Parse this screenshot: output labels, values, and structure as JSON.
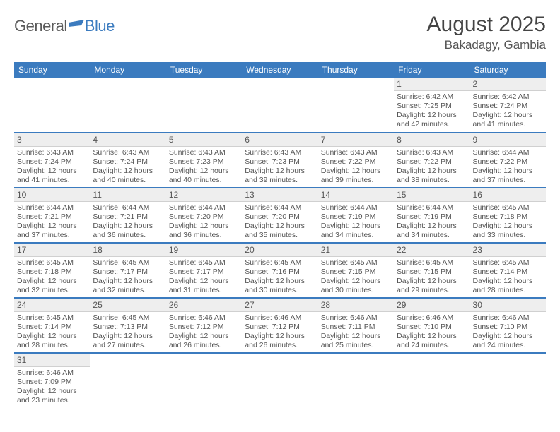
{
  "brand": {
    "part1": "General",
    "part2": "Blue"
  },
  "header": {
    "title": "August 2025",
    "location": "Bakadagy, Gambia"
  },
  "colors": {
    "header_bg": "#3b7bbf",
    "header_fg": "#ffffff",
    "daynum_bg": "#eeeeee",
    "row_divider": "#3b7bbf",
    "text": "#555555",
    "logo_gray": "#5a5a5a",
    "logo_blue": "#3b7bbf"
  },
  "daysOfWeek": [
    "Sunday",
    "Monday",
    "Tuesday",
    "Wednesday",
    "Thursday",
    "Friday",
    "Saturday"
  ],
  "weeks": [
    [
      null,
      null,
      null,
      null,
      null,
      {
        "n": "1",
        "sr": "Sunrise: 6:42 AM",
        "ss": "Sunset: 7:25 PM",
        "dl1": "Daylight: 12 hours",
        "dl2": "and 42 minutes."
      },
      {
        "n": "2",
        "sr": "Sunrise: 6:42 AM",
        "ss": "Sunset: 7:24 PM",
        "dl1": "Daylight: 12 hours",
        "dl2": "and 41 minutes."
      }
    ],
    [
      {
        "n": "3",
        "sr": "Sunrise: 6:43 AM",
        "ss": "Sunset: 7:24 PM",
        "dl1": "Daylight: 12 hours",
        "dl2": "and 41 minutes."
      },
      {
        "n": "4",
        "sr": "Sunrise: 6:43 AM",
        "ss": "Sunset: 7:24 PM",
        "dl1": "Daylight: 12 hours",
        "dl2": "and 40 minutes."
      },
      {
        "n": "5",
        "sr": "Sunrise: 6:43 AM",
        "ss": "Sunset: 7:23 PM",
        "dl1": "Daylight: 12 hours",
        "dl2": "and 40 minutes."
      },
      {
        "n": "6",
        "sr": "Sunrise: 6:43 AM",
        "ss": "Sunset: 7:23 PM",
        "dl1": "Daylight: 12 hours",
        "dl2": "and 39 minutes."
      },
      {
        "n": "7",
        "sr": "Sunrise: 6:43 AM",
        "ss": "Sunset: 7:22 PM",
        "dl1": "Daylight: 12 hours",
        "dl2": "and 39 minutes."
      },
      {
        "n": "8",
        "sr": "Sunrise: 6:43 AM",
        "ss": "Sunset: 7:22 PM",
        "dl1": "Daylight: 12 hours",
        "dl2": "and 38 minutes."
      },
      {
        "n": "9",
        "sr": "Sunrise: 6:44 AM",
        "ss": "Sunset: 7:22 PM",
        "dl1": "Daylight: 12 hours",
        "dl2": "and 37 minutes."
      }
    ],
    [
      {
        "n": "10",
        "sr": "Sunrise: 6:44 AM",
        "ss": "Sunset: 7:21 PM",
        "dl1": "Daylight: 12 hours",
        "dl2": "and 37 minutes."
      },
      {
        "n": "11",
        "sr": "Sunrise: 6:44 AM",
        "ss": "Sunset: 7:21 PM",
        "dl1": "Daylight: 12 hours",
        "dl2": "and 36 minutes."
      },
      {
        "n": "12",
        "sr": "Sunrise: 6:44 AM",
        "ss": "Sunset: 7:20 PM",
        "dl1": "Daylight: 12 hours",
        "dl2": "and 36 minutes."
      },
      {
        "n": "13",
        "sr": "Sunrise: 6:44 AM",
        "ss": "Sunset: 7:20 PM",
        "dl1": "Daylight: 12 hours",
        "dl2": "and 35 minutes."
      },
      {
        "n": "14",
        "sr": "Sunrise: 6:44 AM",
        "ss": "Sunset: 7:19 PM",
        "dl1": "Daylight: 12 hours",
        "dl2": "and 34 minutes."
      },
      {
        "n": "15",
        "sr": "Sunrise: 6:44 AM",
        "ss": "Sunset: 7:19 PM",
        "dl1": "Daylight: 12 hours",
        "dl2": "and 34 minutes."
      },
      {
        "n": "16",
        "sr": "Sunrise: 6:45 AM",
        "ss": "Sunset: 7:18 PM",
        "dl1": "Daylight: 12 hours",
        "dl2": "and 33 minutes."
      }
    ],
    [
      {
        "n": "17",
        "sr": "Sunrise: 6:45 AM",
        "ss": "Sunset: 7:18 PM",
        "dl1": "Daylight: 12 hours",
        "dl2": "and 32 minutes."
      },
      {
        "n": "18",
        "sr": "Sunrise: 6:45 AM",
        "ss": "Sunset: 7:17 PM",
        "dl1": "Daylight: 12 hours",
        "dl2": "and 32 minutes."
      },
      {
        "n": "19",
        "sr": "Sunrise: 6:45 AM",
        "ss": "Sunset: 7:17 PM",
        "dl1": "Daylight: 12 hours",
        "dl2": "and 31 minutes."
      },
      {
        "n": "20",
        "sr": "Sunrise: 6:45 AM",
        "ss": "Sunset: 7:16 PM",
        "dl1": "Daylight: 12 hours",
        "dl2": "and 30 minutes."
      },
      {
        "n": "21",
        "sr": "Sunrise: 6:45 AM",
        "ss": "Sunset: 7:15 PM",
        "dl1": "Daylight: 12 hours",
        "dl2": "and 30 minutes."
      },
      {
        "n": "22",
        "sr": "Sunrise: 6:45 AM",
        "ss": "Sunset: 7:15 PM",
        "dl1": "Daylight: 12 hours",
        "dl2": "and 29 minutes."
      },
      {
        "n": "23",
        "sr": "Sunrise: 6:45 AM",
        "ss": "Sunset: 7:14 PM",
        "dl1": "Daylight: 12 hours",
        "dl2": "and 28 minutes."
      }
    ],
    [
      {
        "n": "24",
        "sr": "Sunrise: 6:45 AM",
        "ss": "Sunset: 7:14 PM",
        "dl1": "Daylight: 12 hours",
        "dl2": "and 28 minutes."
      },
      {
        "n": "25",
        "sr": "Sunrise: 6:45 AM",
        "ss": "Sunset: 7:13 PM",
        "dl1": "Daylight: 12 hours",
        "dl2": "and 27 minutes."
      },
      {
        "n": "26",
        "sr": "Sunrise: 6:46 AM",
        "ss": "Sunset: 7:12 PM",
        "dl1": "Daylight: 12 hours",
        "dl2": "and 26 minutes."
      },
      {
        "n": "27",
        "sr": "Sunrise: 6:46 AM",
        "ss": "Sunset: 7:12 PM",
        "dl1": "Daylight: 12 hours",
        "dl2": "and 26 minutes."
      },
      {
        "n": "28",
        "sr": "Sunrise: 6:46 AM",
        "ss": "Sunset: 7:11 PM",
        "dl1": "Daylight: 12 hours",
        "dl2": "and 25 minutes."
      },
      {
        "n": "29",
        "sr": "Sunrise: 6:46 AM",
        "ss": "Sunset: 7:10 PM",
        "dl1": "Daylight: 12 hours",
        "dl2": "and 24 minutes."
      },
      {
        "n": "30",
        "sr": "Sunrise: 6:46 AM",
        "ss": "Sunset: 7:10 PM",
        "dl1": "Daylight: 12 hours",
        "dl2": "and 24 minutes."
      }
    ],
    [
      {
        "n": "31",
        "sr": "Sunrise: 6:46 AM",
        "ss": "Sunset: 7:09 PM",
        "dl1": "Daylight: 12 hours",
        "dl2": "and 23 minutes."
      },
      null,
      null,
      null,
      null,
      null,
      null
    ]
  ]
}
